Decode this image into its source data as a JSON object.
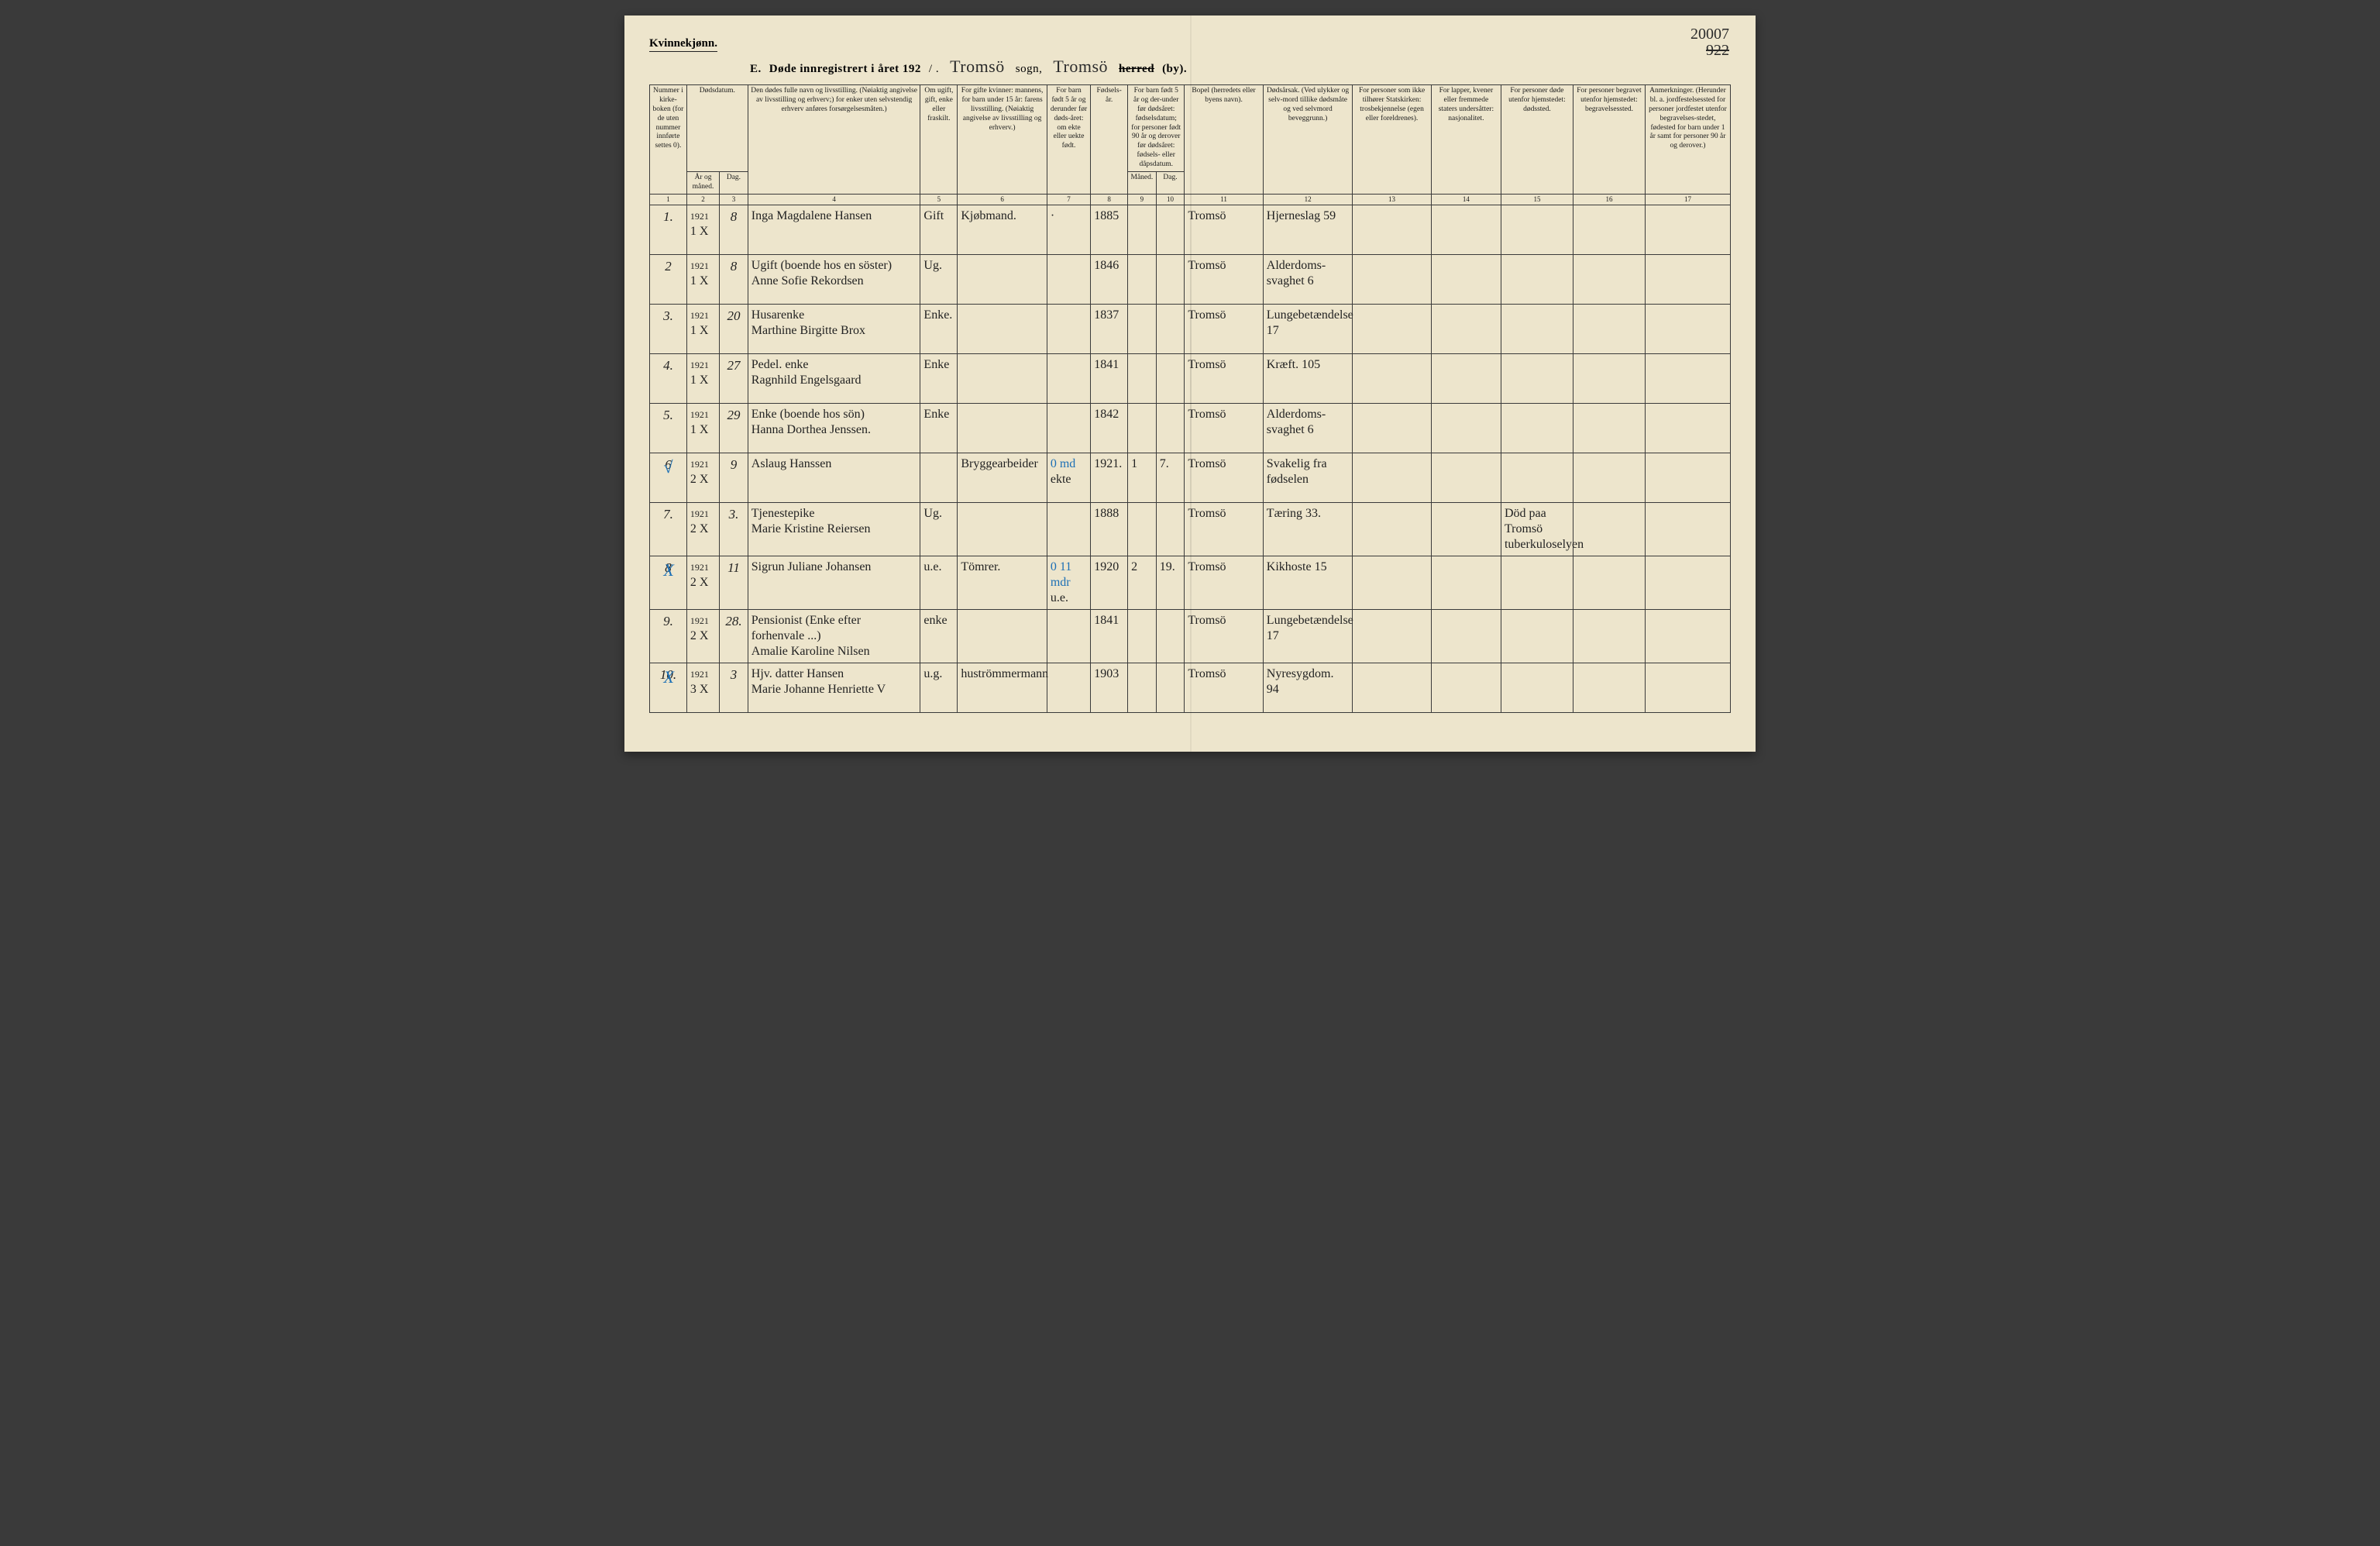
{
  "pageMeta": {
    "kvinnek": "Kvinnekjønn.",
    "formLetter": "E.",
    "titlePrefix": "Døde innregistrert i året 192",
    "yearSuffix": "/  .",
    "sognScript": "Tromsö",
    "sognLabel": "sogn,",
    "herredScript": "Tromsö",
    "herredLabel": "herred",
    "byLabel": "(by).",
    "topRight1": "20007",
    "topRight2": "922"
  },
  "headers": {
    "h1": "Nummer i kirke-boken (for de uten nummer innførte settes 0).",
    "h2top": "Dødsdatum.",
    "h2a": "År og måned.",
    "h2b": "Dag.",
    "h4": "Den dødes fulle navn og livsstilling.\n(Nøiaktig angivelse av livsstilling og erhverv;) for enker uten selvstendig erhverv anføres forsørgelsesmåten.)",
    "h5": "Om ugift, gift, enke eller fraskilt.",
    "h6": "For gifte kvinner: mannens,\nfor barn under 15 år: farens livsstilling.\n(Nøiaktig angivelse av livsstilling og erhverv.)",
    "h7": "For barn født 5 år og derunder før døds-året: om ekte eller uekte født.",
    "h8": "Fødsels-år.",
    "h9top": "For barn født 5 år og der-under før dødsåret: fødselsdatum; for personer født 90 år og derover før dødsåret: fødsels- eller dåpsdatum.",
    "h9a": "Måned.",
    "h9b": "Dag.",
    "h11": "Bopel\n(herredets eller byens navn).",
    "h12": "Dødsårsak.\n(Ved ulykker og selv-mord tillike dødsmåte og ved selvmord beveggrunn.)",
    "h13": "For personer som ikke tilhører Statskirken: trosbekjennelse (egen eller foreldrenes).",
    "h14": "For lapper, kvener eller fremmede staters undersåtter: nasjonalitet.",
    "h15": "For personer døde utenfor hjemstedet: dødssted.",
    "h16": "For personer begravet utenfor hjemstedet: begravelsessted.",
    "h17": "Anmerkninger.\n(Herunder bl. a. jordfestelsessted for personer jordfestet utenfor begravelses-stedet, fødested for barn under 1 år samt for personer 90 år og derover.)"
  },
  "colnums": [
    "1",
    "2",
    "3",
    "4",
    "5",
    "6",
    "7",
    "8",
    "9",
    "10",
    "11",
    "12",
    "13",
    "14",
    "15",
    "16",
    "17"
  ],
  "rows": [
    {
      "n": "1.",
      "yr": "1921",
      "mo": "1",
      "x": "X",
      "d": "8",
      "name": "Inga Magdalene Hansen",
      "stat": "Gift",
      "c6": "Kjøbmand.",
      "c7": "·",
      "c8": "1885",
      "c9": "",
      "c10": "",
      "c11": "Tromsö",
      "c12": "Hjerneslag  59",
      "c15": ""
    },
    {
      "n": "2",
      "yr": "1921",
      "mo": "1",
      "x": "X",
      "d": "8",
      "name": "Ugift (boende hos en söster)\nAnne Sofie Rekordsen",
      "stat": "Ug.",
      "c6": "",
      "c7": "",
      "c8": "1846",
      "c9": "",
      "c10": "",
      "c11": "Tromsö",
      "c12": "Alderdoms-svaghet  6",
      "c15": ""
    },
    {
      "n": "3.",
      "yr": "1921",
      "mo": "1",
      "x": "X",
      "d": "20",
      "name": "Husarenke\nMarthine Birgitte Brox",
      "stat": "Enke.",
      "c6": "",
      "c7": "",
      "c8": "1837",
      "c9": "",
      "c10": "",
      "c11": "Tromsö",
      "c12": "Lungebetændelse  17",
      "c15": ""
    },
    {
      "n": "4.",
      "yr": "1921",
      "mo": "1",
      "x": "X",
      "d": "27",
      "name": "Pedel. enke\nRagnhild Engelsgaard",
      "stat": "Enke",
      "c6": "",
      "c7": "",
      "c8": "1841",
      "c9": "",
      "c10": "",
      "c11": "Tromsö",
      "c12": "Kræft.  105",
      "c15": ""
    },
    {
      "n": "5.",
      "yr": "1921",
      "mo": "1",
      "x": "X",
      "d": "29",
      "name": "Enke (boende hos sön)\nHanna Dorthea Jenssen.",
      "stat": "Enke",
      "c6": "",
      "c7": "",
      "c8": "1842",
      "c9": "",
      "c10": "",
      "c11": "Tromsö",
      "c12": "Alderdoms-svaghet  6",
      "c15": ""
    },
    {
      "n": "6",
      "yr": "1921",
      "mo": "2",
      "x": "X",
      "d": "9",
      "tick": "√",
      "name": "Aslaug Hanssen",
      "stat": "",
      "c6": "Bryggearbeider",
      "c7": "ekte",
      "c8": "1921.",
      "c9": "1",
      "c10": "7.",
      "c11": "Tromsö",
      "c12": "Svakelig fra fødselen",
      "c15": "",
      "blue": "0 md"
    },
    {
      "n": "7.",
      "yr": "1921",
      "mo": "2",
      "x": "X",
      "d": "3.",
      "name": "Tjenestepike\nMarie Kristine Reiersen",
      "stat": "Ug.",
      "c6": "",
      "c7": "",
      "c8": "1888",
      "c9": "",
      "c10": "",
      "c11": "Tromsö",
      "c12": "Tæring  33.",
      "c15": "Död paa Tromsö tuberkuloselyen"
    },
    {
      "n": "8",
      "yr": "1921",
      "mo": "2",
      "x": "X",
      "d": "11",
      "tick": "X",
      "name": "Sigrun Juliane Johansen",
      "stat": "u.e.",
      "c6": "Tömrer.",
      "c7": "u.e.",
      "c8": "1920",
      "c9": "2",
      "c10": "19.",
      "c11": "Tromsö",
      "c12": "Kikhoste  15",
      "c15": "",
      "blue": "0 11 mdr"
    },
    {
      "n": "9.",
      "yr": "1921",
      "mo": "2",
      "x": "X",
      "d": "28.",
      "name": "Pensionist (Enke efter forhenvale ...)\nAmalie Karoline Nilsen",
      "stat": "enke",
      "c6": "",
      "c7": "",
      "c8": "1841",
      "c9": "",
      "c10": "",
      "c11": "Tromsö",
      "c12": "Lungebetændelse  17",
      "c15": ""
    },
    {
      "n": "10.",
      "yr": "1921",
      "mo": "3",
      "x": "X",
      "d": "3",
      "tick": "X",
      "name": "Hjv. datter  Hansen\nMarie Johanne Henriette V",
      "stat": "u.g.",
      "c6": "huströmmermann",
      "c7": "",
      "c8": "1903",
      "c9": "",
      "c10": "",
      "c11": "Tromsö",
      "c12": "Nyresygdom.  94",
      "c15": ""
    }
  ]
}
